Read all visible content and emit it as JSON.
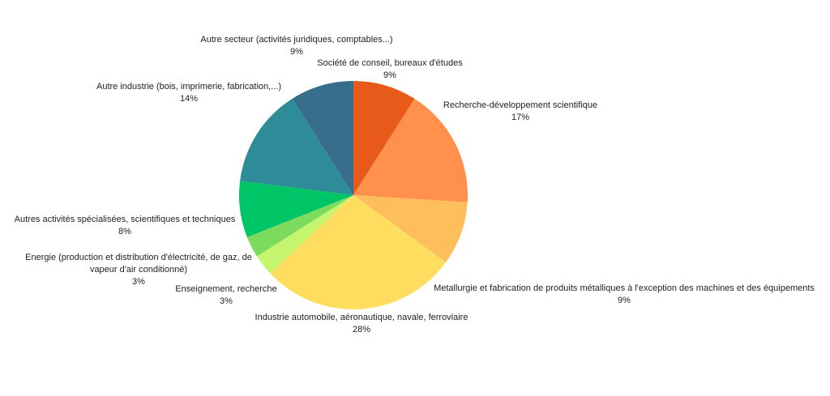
{
  "chart_data": {
    "type": "pie",
    "title": "",
    "slices": [
      {
        "label": "Société de conseil, bureaux d'études",
        "value": 9,
        "value_label": "9%",
        "color": "#E85A1A"
      },
      {
        "label": "Recherche-développement scientifique",
        "value": 17,
        "value_label": "17%",
        "color": "#FF914D"
      },
      {
        "label": "Metallurgie et fabrication de produits métalliques à l'exception des machines et des équipements",
        "value": 9,
        "value_label": "9%",
        "color": "#FFBE5C"
      },
      {
        "label": "Industrie automobile, aéronautique, navale, ferroviaire",
        "value": 28,
        "value_label": "28%",
        "color": "#FFDE5F"
      },
      {
        "label": "Enseignement, recherche",
        "value": 3,
        "value_label": "3%",
        "color": "#C5F56E"
      },
      {
        "label": "Energie (production et distribution d'électricité, de gaz, de vapeur d'air conditionné)",
        "value": 3,
        "value_label": "3%",
        "color": "#7CDA5C"
      },
      {
        "label": "Autres activités spécialisées, scientifiques et techniques",
        "value": 8,
        "value_label": "8%",
        "color": "#00C567"
      },
      {
        "label": "Autre industrie (bois, imprimerie, fabrication,...)",
        "value": 14,
        "value_label": "14%",
        "color": "#2E8C98"
      },
      {
        "label": "Autre secteur (activités juridiques, comptables...)",
        "value": 9,
        "value_label": "9%",
        "color": "#386D8C"
      }
    ]
  }
}
